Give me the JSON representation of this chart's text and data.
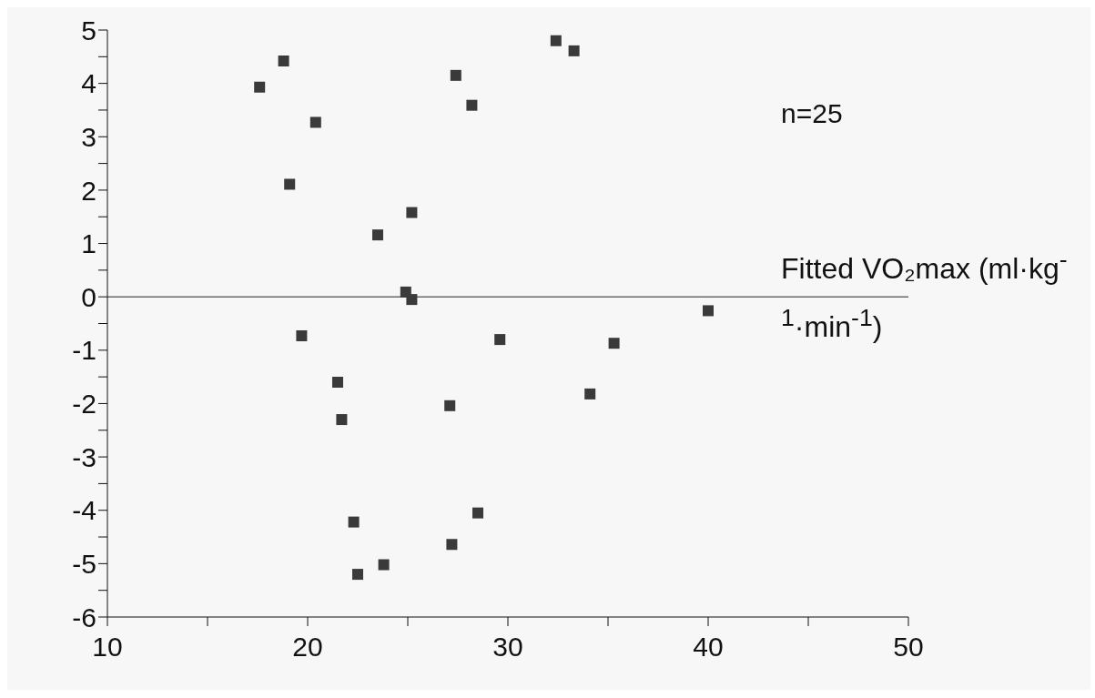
{
  "chart_data": {
    "type": "scatter",
    "xlabel": "Fitted VO₂max (ml·kg$^{-1}$·min$^{-1}$)",
    "annotations": [
      "n=25"
    ],
    "x": [
      17.6,
      18.8,
      20.4,
      19.1,
      25.2,
      23.5,
      27.4,
      28.2,
      32.4,
      33.3,
      24.9,
      25.2,
      19.7,
      21.5,
      21.7,
      29.6,
      27.1,
      35.3,
      34.1,
      40.0,
      22.3,
      28.5,
      27.2,
      23.8,
      22.5
    ],
    "values": [
      3.93,
      4.42,
      3.27,
      2.11,
      1.58,
      1.16,
      4.15,
      3.59,
      4.8,
      4.61,
      0.09,
      -0.05,
      -0.73,
      -1.6,
      -2.3,
      -0.8,
      -2.04,
      -0.87,
      -1.82,
      -0.26,
      -4.22,
      -4.05,
      -4.64,
      -5.02,
      -5.2
    ],
    "color": "#3a3a3a",
    "marker": "square",
    "xlim": [
      10,
      50
    ],
    "xticks": [
      10,
      {
        "value": 15,
        "label": null
      },
      20,
      {
        "value": 25,
        "label": null
      },
      30,
      {
        "value": 35,
        "label": null
      },
      40,
      {
        "value": 45,
        "label": null
      },
      50
    ],
    "ylim": [
      -6,
      5
    ],
    "yticks": [
      -6,
      {
        "value": -5.5,
        "label": null
      },
      -5,
      {
        "value": -4.5,
        "label": null
      },
      -4,
      {
        "value": -3.5,
        "label": null
      },
      -3,
      {
        "value": -2.5,
        "label": null
      },
      -2,
      {
        "value": -1.5,
        "label": null
      },
      -1,
      {
        "value": -0.5,
        "label": null
      },
      0,
      {
        "value": 0.5,
        "label": null
      },
      1,
      {
        "value": 1.5,
        "label": null
      },
      2,
      {
        "value": 2.5,
        "label": null
      },
      3,
      {
        "value": 3.5,
        "label": null
      },
      4,
      {
        "value": 4.5,
        "label": null
      },
      5
    ],
    "ref_lines": [
      {
        "axis": "y",
        "value": 0
      }
    ]
  }
}
